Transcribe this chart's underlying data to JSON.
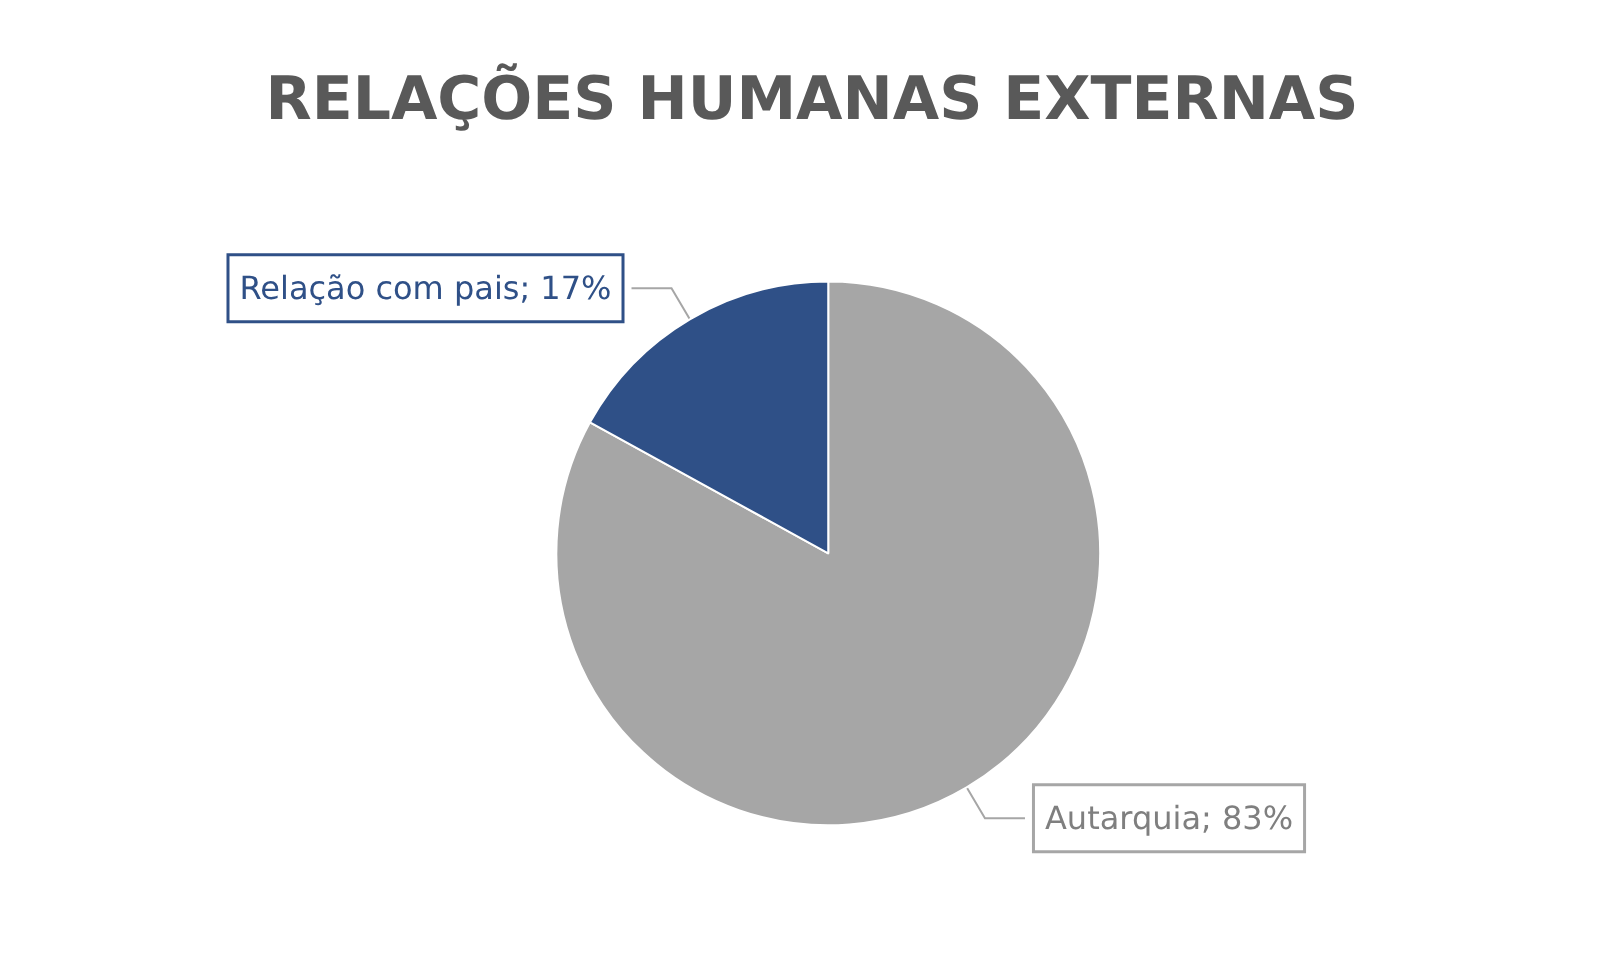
{
  "chart_data": {
    "type": "pie",
    "title": "RELAÇÕES HUMANAS EXTERNAS",
    "categories": [
      "Autarquia",
      "Relação com pais"
    ],
    "values": [
      83,
      17
    ],
    "colors": [
      "#a6a6a6",
      "#2f5087"
    ],
    "value_labels": [
      "; 83%",
      "; 17%"
    ],
    "legend": false
  }
}
